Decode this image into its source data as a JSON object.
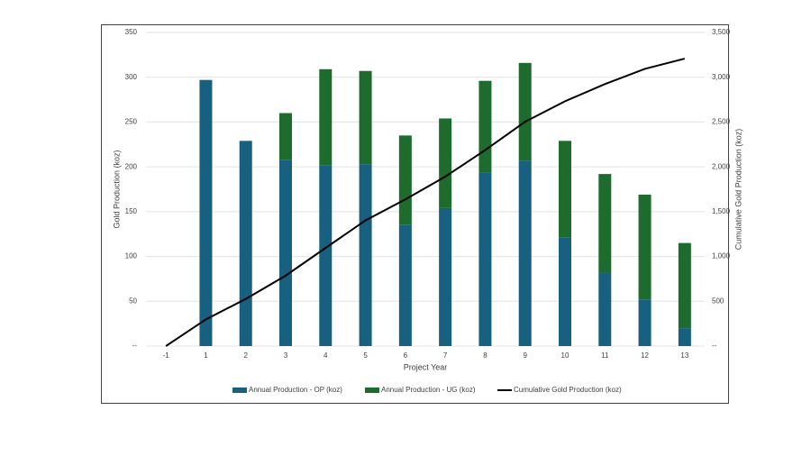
{
  "chart_data": {
    "type": "bar",
    "stacked": true,
    "x_label": "Project Year",
    "y_label": "Gold Production (koz)",
    "y2_label": "Cumulative Gold Production (koz)",
    "categories": [
      "-1",
      "1",
      "2",
      "3",
      "4",
      "5",
      "6",
      "7",
      "8",
      "9",
      "10",
      "11",
      "12",
      "13"
    ],
    "series": [
      {
        "name": "Annual Production - OP (koz)",
        "color": "#17607f",
        "type": "bar",
        "values": [
          null,
          297,
          229,
          208,
          202,
          203,
          135,
          154,
          194,
          207,
          121,
          82,
          52,
          20
        ]
      },
      {
        "name": "Annual Production - UG (koz)",
        "color": "#1e6b2e",
        "type": "bar",
        "values": [
          null,
          null,
          null,
          52,
          107,
          104,
          100,
          100,
          102,
          109,
          108,
          110,
          117,
          95
        ]
      },
      {
        "name": "Cumulative Gold Production (koz)",
        "color": "#000000",
        "type": "line",
        "axis": "y2",
        "values": [
          0,
          297,
          526,
          786,
          1095,
          1402,
          1637,
          1891,
          2187,
          2503,
          2732,
          2924,
          3093,
          3208
        ]
      }
    ],
    "ylim": [
      0,
      350
    ],
    "yticks": [
      {
        "value": 0,
        "label": "--"
      },
      50,
      100,
      150,
      200,
      250,
      300,
      350
    ],
    "y2lim": [
      0,
      3500
    ],
    "y2ticks": [
      {
        "value": 0,
        "label": "--"
      },
      500,
      {
        "value": 1000,
        "label": "1,000"
      },
      {
        "value": 1500,
        "label": "1,500"
      },
      {
        "value": 2000,
        "label": "2,000"
      },
      {
        "value": 2500,
        "label": "2,500"
      },
      {
        "value": 3000,
        "label": "3,000"
      },
      {
        "value": 3500,
        "label": "3,500"
      }
    ],
    "grid": true,
    "legend": "bottom"
  }
}
